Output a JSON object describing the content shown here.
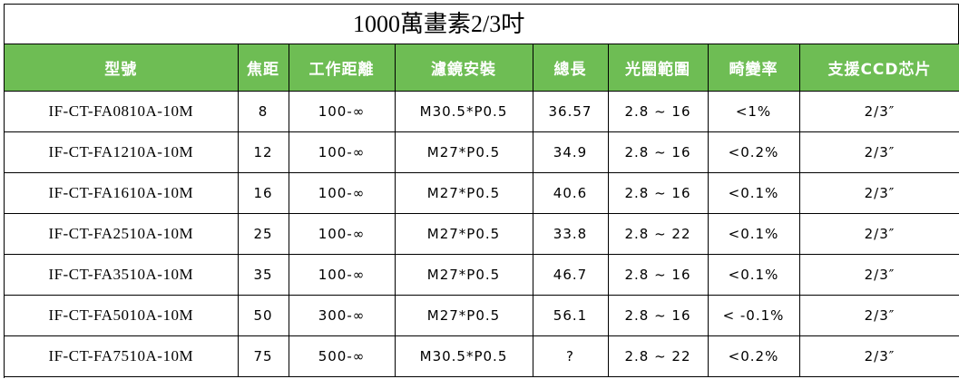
{
  "title": "1000萬畫素2/3吋",
  "headers": [
    "型號",
    "焦距",
    "工作距離",
    "濾鏡安裝",
    "總長",
    "光圈範圍",
    "畸變率",
    "支援CCD芯片"
  ],
  "rows": [
    [
      "IF-CT-FA0810A-10M",
      "8",
      "100-∞",
      "M30.5*P0.5",
      "36.57",
      "2.8 ~ 16",
      "<1%",
      "2/3″"
    ],
    [
      "IF-CT-FA1210A-10M",
      "12",
      "100-∞",
      "M27*P0.5",
      "34.9",
      "2.8 ~ 16",
      "<0.2%",
      "2/3″"
    ],
    [
      "IF-CT-FA1610A-10M",
      "16",
      "100-∞",
      "M27*P0.5",
      "40.6",
      "2.8 ~ 16",
      "<0.1%",
      "2/3″"
    ],
    [
      "IF-CT-FA2510A-10M",
      "25",
      "100-∞",
      "M27*P0.5",
      "33.8",
      "2.8 ~ 22",
      "<0.1%",
      "2/3″"
    ],
    [
      "IF-CT-FA3510A-10M",
      "35",
      "100-∞",
      "M27*P0.5",
      "46.7",
      "2.8 ~ 16",
      "<0.1%",
      "2/3″"
    ],
    [
      "IF-CT-FA5010A-10M",
      "50",
      "300-∞",
      "M27*P0.5",
      "56.1",
      "2.8 ~ 16",
      "< -0.1%",
      "2/3″"
    ],
    [
      "IF-CT-FA7510A-10M",
      "75",
      "500-∞",
      "M30.5*P0.5",
      "?",
      "2.8 ~ 22",
      "<0.2%",
      "2/3″"
    ]
  ],
  "colors": {
    "header_bg": "#6ebd54",
    "header_text": "#ffffff"
  }
}
